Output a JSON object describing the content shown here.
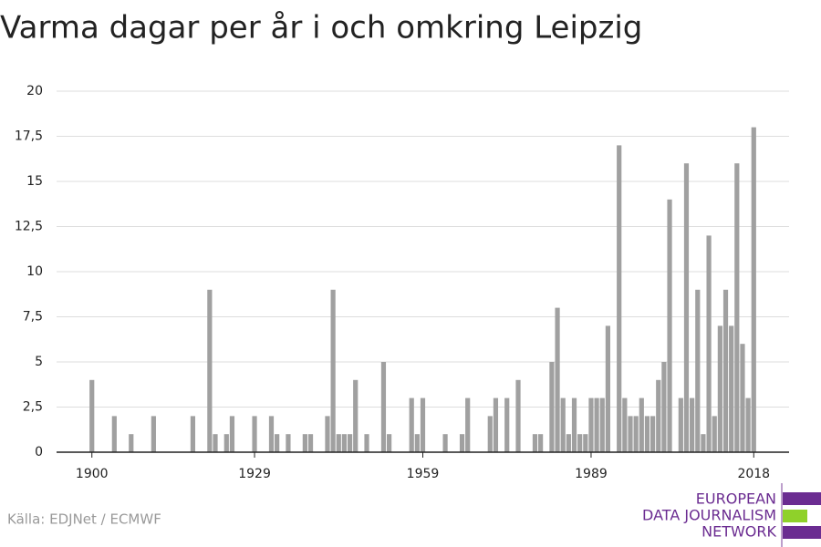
{
  "chart_data": {
    "type": "bar",
    "title": "Varma dagar per år i och omkring Leipzig",
    "x": [
      1900,
      1901,
      1902,
      1903,
      1904,
      1905,
      1906,
      1907,
      1908,
      1909,
      1910,
      1911,
      1912,
      1913,
      1914,
      1915,
      1916,
      1917,
      1918,
      1919,
      1920,
      1921,
      1922,
      1923,
      1924,
      1925,
      1926,
      1927,
      1928,
      1929,
      1930,
      1931,
      1932,
      1933,
      1934,
      1935,
      1936,
      1937,
      1938,
      1939,
      1940,
      1941,
      1942,
      1943,
      1944,
      1945,
      1946,
      1947,
      1948,
      1949,
      1950,
      1951,
      1952,
      1953,
      1954,
      1955,
      1956,
      1957,
      1958,
      1959,
      1960,
      1961,
      1962,
      1963,
      1964,
      1965,
      1966,
      1967,
      1968,
      1969,
      1970,
      1971,
      1972,
      1973,
      1974,
      1975,
      1976,
      1977,
      1978,
      1979,
      1980,
      1981,
      1982,
      1983,
      1984,
      1985,
      1986,
      1987,
      1988,
      1989,
      1990,
      1991,
      1992,
      1993,
      1994,
      1995,
      1996,
      1997,
      1998,
      1999,
      2000,
      2001,
      2002,
      2003,
      2004,
      2005,
      2006,
      2007,
      2008,
      2009,
      2010,
      2011,
      2012,
      2013,
      2014,
      2015,
      2016,
      2017,
      2018
    ],
    "values": [
      4,
      0,
      0,
      0,
      2,
      0,
      0,
      1,
      0,
      0,
      0,
      2,
      0,
      0,
      0,
      0,
      0,
      0,
      2,
      0,
      0,
      9,
      1,
      0,
      1,
      2,
      0,
      0,
      0,
      2,
      0,
      0,
      2,
      1,
      0,
      1,
      0,
      0,
      1,
      1,
      0,
      0,
      2,
      9,
      1,
      1,
      1,
      4,
      0,
      1,
      0,
      0,
      5,
      1,
      0,
      0,
      0,
      3,
      1,
      3,
      0,
      0,
      0,
      1,
      0,
      0,
      1,
      3,
      0,
      0,
      0,
      2,
      3,
      0,
      3,
      0,
      4,
      0,
      0,
      1,
      1,
      0,
      5,
      8,
      3,
      1,
      3,
      1,
      1,
      3,
      3,
      3,
      7,
      0,
      17,
      3,
      2,
      2,
      3,
      2,
      2,
      4,
      5,
      14,
      0,
      3,
      16,
      3,
      9,
      1,
      12,
      2,
      7,
      9,
      7,
      16,
      6,
      3,
      18
    ],
    "color": "#a0a0a0",
    "xlim": [
      1893.7,
      2024.3
    ],
    "xticks": [
      1900,
      1929,
      1959,
      1989,
      2018
    ],
    "ylim": [
      0,
      20
    ],
    "yticks": [
      0,
      {
        "value": 2.5,
        "label": "2,5"
      },
      5,
      {
        "value": 7.5,
        "label": "7,5"
      },
      10,
      {
        "value": 12.5,
        "label": "12,5"
      },
      15,
      {
        "value": 17.5,
        "label": "17,5"
      },
      20
    ],
    "grid": true,
    "source": "Källa: EDJNet / ECMWF",
    "logo": [
      "EUROPEAN",
      "DATA JOURNALISM",
      "NETWORK"
    ]
  }
}
